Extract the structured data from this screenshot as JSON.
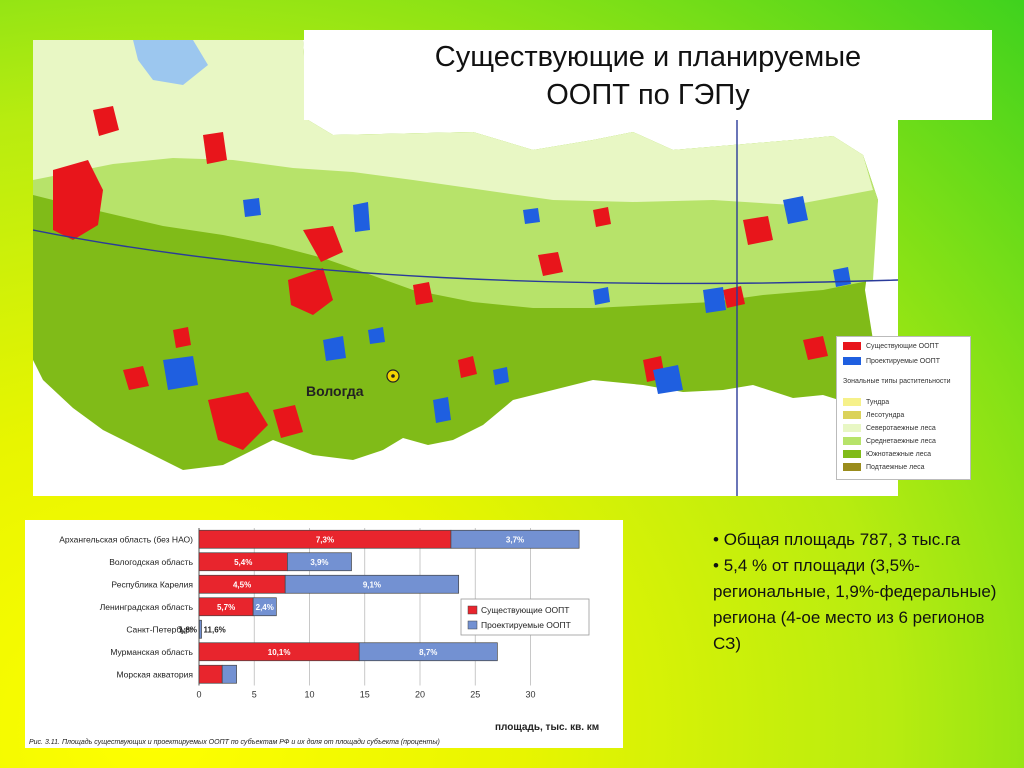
{
  "title": {
    "line1": "Существующие и планируемые",
    "line2": "ООПТ по ГЭПу"
  },
  "map": {
    "city": "Вологда",
    "legend": {
      "existing": "Существующие ООПТ",
      "planned": "Проектируемые ООПТ",
      "zonal_header": "Зональные типы растительности",
      "zones": [
        "Тундра",
        "Лесотундра",
        "Северотаежные леса",
        "Среднетаежные леса",
        "Южнотаежные леса",
        "Подтаежные леса"
      ]
    },
    "colors": {
      "existing": "#e8151b",
      "planned": "#1f5fe0",
      "tundra": "#f6f18a",
      "foresttundra": "#dbd25a",
      "north_taiga": "#e8f7c4",
      "mid_taiga": "#b7e36a",
      "south_taiga": "#80bb18",
      "subtaiga": "#9a8c1c"
    }
  },
  "chart_data": {
    "type": "bar",
    "stacked": true,
    "orientation": "horizontal",
    "categories": [
      "Архангельская область (без НАО)",
      "Вологодская область",
      "Республика Карелия",
      "Ленинградская область",
      "Санкт-Петербург",
      "Мурманская область",
      "Морская акватория"
    ],
    "series": [
      {
        "name": "Существующие ООПТ",
        "color": "#e8252d",
        "values": [
          22.8,
          8.0,
          7.8,
          4.9,
          0.03,
          14.5,
          2.1
        ],
        "labels": [
          "7,3%",
          "5,4%",
          "4,5%",
          "5,7%",
          "1,8%",
          "10,1%",
          ""
        ]
      },
      {
        "name": "Проектируемые ООПТ",
        "color": "#7391d2",
        "values": [
          11.6,
          5.8,
          15.7,
          2.1,
          0.2,
          12.5,
          1.3
        ],
        "labels": [
          "3,7%",
          "3,9%",
          "9,1%",
          "2,4%",
          "11,6%",
          "8,7%",
          ""
        ]
      }
    ],
    "xlabel": "площадь, тыс. кв. км",
    "xticks": [
      0,
      5,
      10,
      15,
      20,
      25,
      30
    ],
    "xlim": [
      0,
      35
    ],
    "caption": "Рис. 3.11. Площадь существующих и проектируемых ООПТ по субъектам РФ и их доля от площади субъекта (проценты)"
  },
  "bullets": [
    "Общая площадь 787, 3 тыс.га",
    "5,4 % от площади  (3,5%-региональные, 1,9%-федеральные) региона (4-ое место из 6 регионов СЗ)"
  ]
}
